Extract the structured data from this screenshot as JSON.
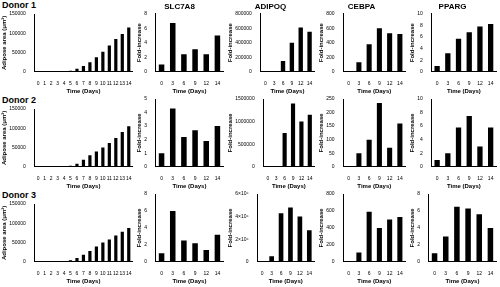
{
  "row_labels": [
    "Donor 1",
    "Donor 2",
    "Donor 3"
  ],
  "chart_data": [
    {
      "type": "bar",
      "y_label": "Adipose area (μm²)",
      "x_label": "Time (Days)",
      "categories": [
        "0",
        "1",
        "2",
        "3",
        "4",
        "5",
        "6",
        "7",
        "8",
        "9",
        "10",
        "11",
        "12",
        "13",
        "14"
      ],
      "values": [
        0,
        0,
        0,
        500,
        1000,
        3000,
        8000,
        15000,
        25000,
        38000,
        52000,
        68000,
        85000,
        98000,
        115000
      ],
      "color": "#000000",
      "ylim": [
        0,
        150000
      ],
      "yticks": [
        0,
        50000,
        100000,
        150000
      ],
      "grid": false
    },
    {
      "type": "bar",
      "title": "SLC7A8",
      "y_label": "Fold-increase",
      "x_label": "Time (Days)",
      "categories": [
        "0",
        "3",
        "6",
        "9",
        "12",
        "14"
      ],
      "values": [
        1,
        6.7,
        2.4,
        3.1,
        2.4,
        5
      ],
      "color": "#000000",
      "ylim": [
        0,
        8
      ],
      "yticks": [
        0,
        2,
        4,
        6,
        8
      ],
      "grid": false
    },
    {
      "type": "bar",
      "title": "ADIPOQ",
      "y_label": "Fold-increase",
      "x_label": "Time (Days)",
      "categories": [
        "0",
        "3",
        "6",
        "9",
        "12",
        "14"
      ],
      "values": [
        1,
        2000,
        150000,
        400000,
        610000,
        550000
      ],
      "color": "#000000",
      "ylim": [
        0,
        800000
      ],
      "yticks": [
        0,
        200000,
        400000,
        600000,
        800000
      ],
      "grid": false
    },
    {
      "type": "bar",
      "title": "CEBPA",
      "y_label": "Fold-increase",
      "x_label": "Time (Days)",
      "categories": [
        "0",
        "3",
        "6",
        "9",
        "12",
        "14"
      ],
      "values": [
        1,
        130,
        380,
        600,
        530,
        520
      ],
      "color": "#000000",
      "ylim": [
        0,
        800
      ],
      "yticks": [
        0,
        200,
        400,
        600,
        800
      ],
      "grid": false
    },
    {
      "type": "bar",
      "title": "PPARG",
      "y_label": "Fold-increase",
      "x_label": "Time (Days)",
      "categories": [
        "0",
        "3",
        "6",
        "9",
        "12",
        "14"
      ],
      "values": [
        1,
        3.2,
        5.7,
        6.8,
        7.8,
        8.2
      ],
      "color": "#000000",
      "ylim": [
        0,
        10
      ],
      "yticks": [
        0,
        2,
        4,
        6,
        8,
        10
      ],
      "grid": false
    },
    {
      "type": "bar",
      "y_label": "Adipose area (μm²)",
      "x_label": "Time (Days)",
      "categories": [
        "0",
        "1",
        "2",
        "3",
        "4",
        "5",
        "6",
        "7",
        "8",
        "9",
        "10",
        "11",
        "12",
        "13",
        "14"
      ],
      "values": [
        0,
        0,
        0,
        500,
        1000,
        3000,
        8000,
        18000,
        30000,
        40000,
        50000,
        62000,
        75000,
        90000,
        105000
      ],
      "color": "#000000",
      "ylim": [
        0,
        150000
      ],
      "yticks": [
        0,
        50000,
        100000,
        150000
      ],
      "grid": false
    },
    {
      "type": "bar",
      "y_label": "Fold-increase",
      "x_label": "Time (Days)",
      "categories": [
        "0",
        "3",
        "6",
        "9",
        "12",
        "14"
      ],
      "values": [
        1,
        4.3,
        2.2,
        2.7,
        1.9,
        3
      ],
      "color": "#000000",
      "ylim": [
        0,
        5
      ],
      "yticks": [
        0,
        1,
        2,
        3,
        4,
        5
      ],
      "grid": false
    },
    {
      "type": "bar",
      "y_label": "Fold-increase",
      "x_label": "Time (Days)",
      "categories": [
        "0",
        "3",
        "6",
        "9",
        "12",
        "14"
      ],
      "values": [
        1,
        10000,
        750000,
        1400000,
        1000000,
        1150000
      ],
      "color": "#000000",
      "ylim": [
        0,
        1500000
      ],
      "yticks": [
        0,
        500000,
        1000000,
        1500000
      ],
      "grid": false
    },
    {
      "type": "bar",
      "y_label": "Fold-increase",
      "x_label": "Time (Days)",
      "categories": [
        "0",
        "3",
        "6",
        "9",
        "12",
        "14"
      ],
      "values": [
        1,
        50,
        100,
        235,
        70,
        160
      ],
      "color": "#000000",
      "ylim": [
        0,
        250
      ],
      "yticks": [
        0,
        50,
        100,
        150,
        200,
        250
      ],
      "grid": false
    },
    {
      "type": "bar",
      "y_label": "Fold-increase",
      "x_label": "Time (Days)",
      "categories": [
        "0",
        "3",
        "6",
        "9",
        "12",
        "14"
      ],
      "values": [
        1,
        2,
        5.8,
        7.5,
        3,
        5.8
      ],
      "color": "#000000",
      "ylim": [
        0,
        10
      ],
      "yticks": [
        0,
        2,
        4,
        6,
        8,
        10
      ],
      "grid": false
    },
    {
      "type": "bar",
      "y_label": "Adipose area (μm²)",
      "x_label": "Time (Days)",
      "categories": [
        "0",
        "1",
        "2",
        "3",
        "4",
        "5",
        "6",
        "7",
        "8",
        "9",
        "10",
        "11",
        "12",
        "13",
        "14"
      ],
      "values": [
        0,
        0,
        0,
        500,
        1500,
        4000,
        10000,
        18000,
        28000,
        40000,
        50000,
        58000,
        68000,
        78000,
        88000
      ],
      "color": "#000000",
      "ylim": [
        0,
        150000
      ],
      "yticks": [
        0,
        50000,
        100000,
        150000
      ],
      "grid": false
    },
    {
      "type": "bar",
      "y_label": "Fold-increase",
      "x_label": "Time (Days)",
      "categories": [
        "0",
        "3",
        "6",
        "9",
        "12",
        "14"
      ],
      "values": [
        1,
        6,
        2.5,
        2.2,
        1.4,
        3.2
      ],
      "color": "#000000",
      "ylim": [
        0,
        8
      ],
      "yticks": [
        0,
        2,
        4,
        6,
        8
      ],
      "grid": false
    },
    {
      "type": "bar",
      "y_label": "Fold-increase",
      "x_label": "Time (Days)",
      "categories": [
        "0",
        "3",
        "6",
        "9",
        "12",
        "14"
      ],
      "values": [
        1,
        500000,
        4300000,
        4800000,
        4000000,
        2800000
      ],
      "color": "#000000",
      "ylim": [
        0,
        6000000
      ],
      "yticks": [
        0,
        {
          "value": 2000000,
          "label": "2×10⁶"
        },
        {
          "value": 4000000,
          "label": "4×10⁶"
        },
        {
          "value": 6000000,
          "label": "6×10⁶"
        }
      ],
      "grid": false
    },
    {
      "type": "bar",
      "y_label": "Fold-increase",
      "x_label": "Time (Days)",
      "categories": [
        "0",
        "3",
        "6",
        "9",
        "12",
        "14"
      ],
      "values": [
        1,
        110,
        590,
        400,
        500,
        530
      ],
      "color": "#000000",
      "ylim": [
        0,
        800
      ],
      "yticks": [
        0,
        200,
        400,
        600,
        800
      ],
      "grid": false
    },
    {
      "type": "bar",
      "y_label": "Fold-increase",
      "x_label": "Time (Days)",
      "categories": [
        "0",
        "3",
        "6",
        "9",
        "12",
        "14"
      ],
      "values": [
        1,
        3,
        6.5,
        6.3,
        5.6,
        4
      ],
      "color": "#000000",
      "ylim": [
        0,
        8
      ],
      "yticks": [
        0,
        2,
        4,
        6,
        8
      ],
      "grid": false
    }
  ]
}
